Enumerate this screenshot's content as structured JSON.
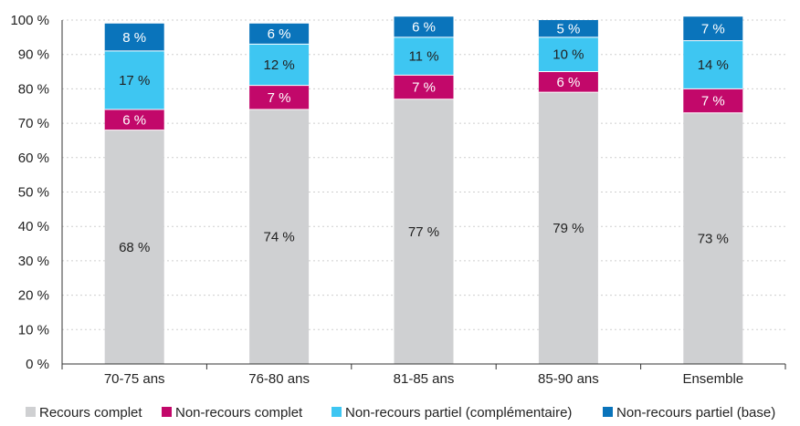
{
  "chart_data": {
    "type": "bar",
    "stacked": true,
    "categories": [
      "70-75 ans",
      "76-80 ans",
      "81-85 ans",
      "85-90 ans",
      "Ensemble"
    ],
    "series": [
      {
        "name": "Recours complet",
        "color": "#cfd0d2",
        "label_color": "#222222",
        "values": [
          68,
          74,
          77,
          79,
          73
        ],
        "labels": [
          "68 %",
          "74 %",
          "77 %",
          "79 %",
          "73 %"
        ]
      },
      {
        "name": "Non-recours complet",
        "color": "#c2086a",
        "label_color": "#ffffff",
        "values": [
          6,
          7,
          7,
          6,
          7
        ],
        "labels": [
          "6 %",
          "7 %",
          "7 %",
          "6 %",
          "7 %"
        ]
      },
      {
        "name": "Non-recours partiel (complémentaire)",
        "color": "#3ec6f2",
        "label_color": "#222222",
        "values": [
          17,
          12,
          11,
          10,
          14
        ],
        "labels": [
          "17 %",
          "12 %",
          "11 %",
          "10 %",
          "14 %"
        ]
      },
      {
        "name": "Non-recours partiel (base)",
        "color": "#0a74bb",
        "label_color": "#ffffff",
        "values": [
          8,
          6,
          6,
          5,
          7
        ],
        "labels": [
          "8 %",
          "6 %",
          "6 %",
          "5 %",
          "7 %"
        ]
      }
    ],
    "ylim": [
      0,
      100
    ],
    "yticks": [
      0,
      10,
      20,
      30,
      40,
      50,
      60,
      70,
      80,
      90,
      100
    ],
    "ytick_labels": [
      "0 %",
      "10 %",
      "20 %",
      "30 %",
      "40 %",
      "50 %",
      "60 %",
      "70 %",
      "80 %",
      "90 %",
      "100 %"
    ],
    "grid": true,
    "legend_position": "bottom"
  }
}
